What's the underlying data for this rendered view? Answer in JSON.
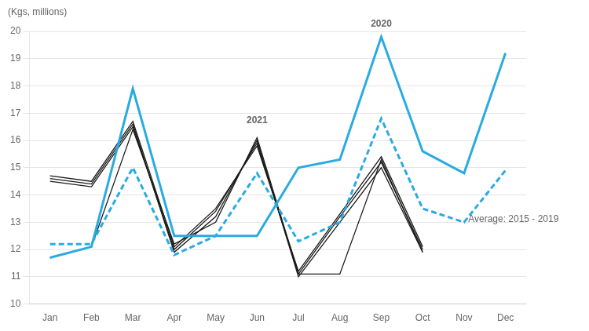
{
  "chart_data": {
    "type": "line",
    "ylabel": "(Kgs, millions)",
    "categories": [
      "Jan",
      "Feb",
      "Mar",
      "Apr",
      "May",
      "Jun",
      "Jul",
      "Aug",
      "Sep",
      "Oct",
      "Nov",
      "Dec"
    ],
    "series": [
      {
        "color": "#1a1a1a",
        "line_style": "solid",
        "values": [
          14.6,
          14.4,
          16.6,
          11.9,
          13.2,
          16.0,
          11.0,
          13.0,
          15.0,
          11.9,
          null,
          null
        ]
      },
      {
        "color": "#1a1a1a",
        "line_style": "solid",
        "values": [
          14.5,
          14.3,
          16.5,
          12.0,
          13.4,
          15.9,
          11.1,
          13.2,
          15.2,
          12.0,
          null,
          null
        ]
      },
      {
        "color": "#1a1a1a",
        "line_style": "solid",
        "values": [
          14.7,
          14.5,
          16.7,
          12.1,
          13.5,
          15.8,
          11.2,
          13.3,
          15.4,
          12.1,
          null,
          null
        ]
      },
      {
        "color": "#1a1a1a",
        "line_style": "solid",
        "values": [
          11.7,
          12.1,
          16.4,
          12.2,
          13.0,
          16.1,
          11.1,
          11.1,
          15.3,
          11.9,
          null,
          null
        ]
      },
      {
        "color": "#29ABE2",
        "line_style": "solid",
        "values": [
          11.7,
          12.1,
          17.9,
          12.5,
          12.5,
          12.5,
          15.0,
          15.3,
          19.8,
          15.6,
          14.8,
          19.2
        ]
      },
      {
        "color": "#29ABE2",
        "line_style": "dashed",
        "values": [
          12.2,
          12.2,
          15.0,
          11.8,
          12.5,
          14.8,
          12.3,
          13.0,
          16.8,
          13.5,
          13.0,
          14.9
        ]
      }
    ],
    "annotations": [
      {
        "text": "2020",
        "x": 8,
        "y": 20.05
      },
      {
        "text": "2021",
        "x": 5.0,
        "y": 16.5
      },
      {
        "text": "Average: 2015 - 2019",
        "x": 10.1,
        "y": 13.1
      }
    ],
    "ylim": [
      10,
      20
    ],
    "yticks": [
      10,
      11,
      12,
      13,
      14,
      15,
      16,
      17,
      18,
      19,
      20
    ],
    "grid": true
  }
}
